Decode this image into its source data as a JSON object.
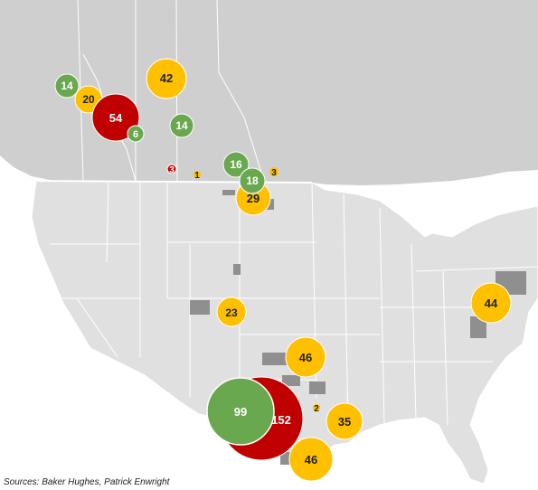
{
  "map": {
    "colors": {
      "canada": "#cfcfcf",
      "usa": "#e0e0e0",
      "border": "#ffffff",
      "basin": "#8f8f8f",
      "green": "#6aa84f",
      "red": "#c00000",
      "yellow": "#ffc000"
    },
    "bubbles": [
      {
        "label": "14",
        "color": "green"
      },
      {
        "label": "20",
        "color": "yellow"
      },
      {
        "label": "54",
        "color": "red"
      },
      {
        "label": "6",
        "color": "green"
      },
      {
        "label": "42",
        "color": "yellow"
      },
      {
        "label": "14",
        "color": "green"
      },
      {
        "label": "3",
        "color": "red"
      },
      {
        "label": "1",
        "color": "yellow"
      },
      {
        "label": "16",
        "color": "green"
      },
      {
        "label": "3",
        "color": "yellow"
      },
      {
        "label": "18",
        "color": "green"
      },
      {
        "label": "29",
        "color": "yellow"
      },
      {
        "label": "44",
        "color": "yellow"
      },
      {
        "label": "23",
        "color": "yellow"
      },
      {
        "label": "46",
        "color": "yellow"
      },
      {
        "label": "2",
        "color": "yellow"
      },
      {
        "label": "35",
        "color": "yellow"
      },
      {
        "label": "152",
        "color": "red"
      },
      {
        "label": "99",
        "color": "green"
      },
      {
        "label": "46",
        "color": "yellow"
      }
    ]
  },
  "source": "Sources: Baker Hughes, Patrick Enwright"
}
